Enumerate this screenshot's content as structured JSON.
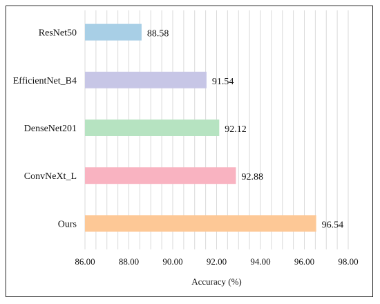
{
  "chart_data": {
    "type": "bar",
    "orientation": "horizontal",
    "categories": [
      "ResNet50",
      "EfficientNet_B4",
      "DenseNet201",
      "ConvNeXt_L",
      "Ours"
    ],
    "values": [
      88.58,
      91.54,
      92.12,
      92.88,
      96.54
    ],
    "value_labels": [
      "88.58",
      "91.54",
      "92.12",
      "92.88",
      "96.54"
    ],
    "colors": [
      "#a8cfe6",
      "#c7c6e6",
      "#b6e3c1",
      "#f9b3c1",
      "#fdc896"
    ],
    "title": "",
    "xlabel": "Accuracy (%)",
    "ylabel": "",
    "xlim": [
      86,
      98
    ],
    "xticks": [
      86,
      88,
      90,
      92,
      94,
      96,
      98
    ],
    "xtick_labels": [
      "86.00",
      "88.00",
      "90.00",
      "92.00",
      "94.00",
      "96.00",
      "98.00"
    ],
    "vertical_grid": true,
    "legend": "none"
  }
}
